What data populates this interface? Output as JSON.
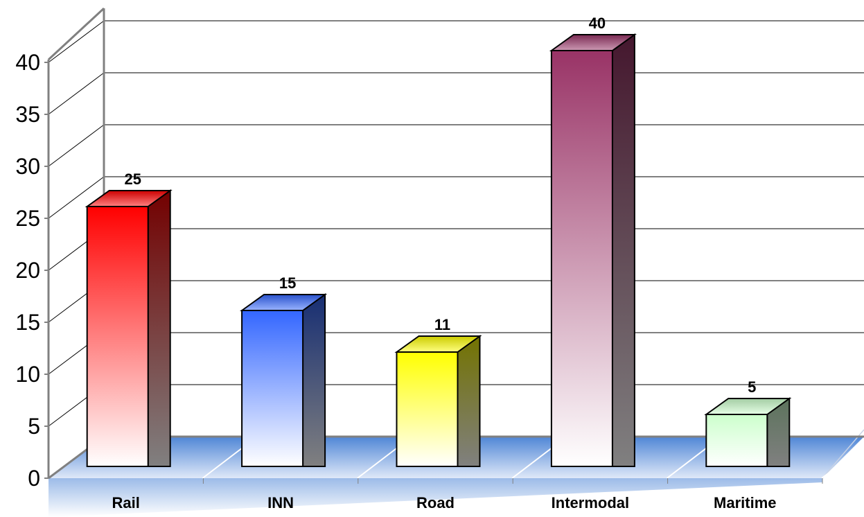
{
  "chart_data": {
    "type": "bar",
    "categories": [
      "Rail",
      "INN",
      "Road",
      "Intermodal",
      "Maritime"
    ],
    "values": [
      25,
      15,
      11,
      40,
      5
    ],
    "data_labels": [
      "25",
      "15",
      "11",
      "40",
      "5"
    ],
    "ylim": [
      0,
      40
    ],
    "y_ticks": [
      "0",
      "5",
      "10",
      "15",
      "20",
      "25",
      "30",
      "35",
      "40"
    ],
    "grid": true,
    "legend": "none",
    "style": "3d-column",
    "colors": [
      "#ff0000",
      "#3366ff",
      "#ffff00",
      "#993366",
      "#ccffcc"
    ]
  }
}
